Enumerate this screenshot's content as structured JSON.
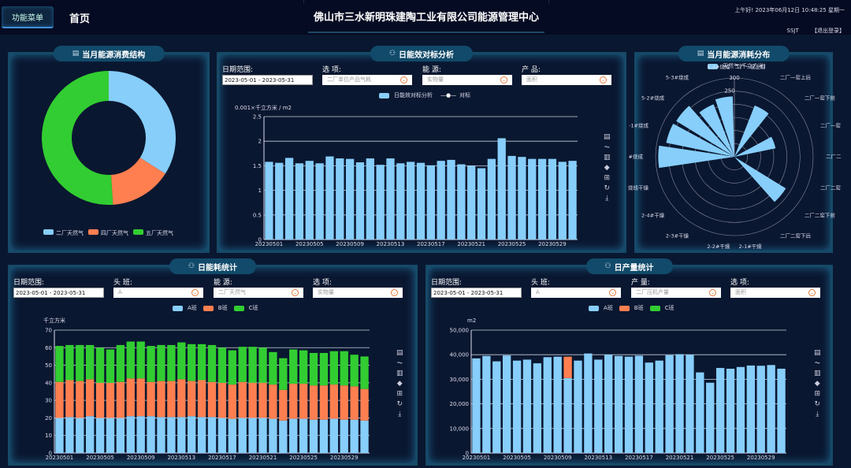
{
  "header": {
    "menu_button": "功能菜单",
    "home": "首页",
    "title": "佛山市三水新明珠建陶工业有限公司能源管理中心",
    "greeting": "上午好!   2023年06月12日 10:48:25 星期一",
    "username": "SSJT",
    "logout": "【退出登录】"
  },
  "panels": {
    "structure": {
      "title": "当月能源消费结构"
    },
    "efficiency": {
      "title": "日能效对标分析",
      "filters": [
        {
          "label": "日期范围:",
          "value": "2023-05-01 - 2023-05-31"
        },
        {
          "label": "选 项:",
          "value": "二厂单位产品气耗"
        },
        {
          "label": "能 源:",
          "value": "实物量"
        },
        {
          "label": "产 品:",
          "value": "面积"
        }
      ],
      "legend": [
        "日能效对标分析",
        "对标"
      ],
      "unit": "0.001×千立方米 / m2"
    },
    "distribution": {
      "title": "当月能源消耗分布",
      "legend": "天然气(千立方米)"
    },
    "consumption": {
      "title": "日能耗统计",
      "filters": [
        {
          "label": "日期范围:",
          "value": "2023-05-01 - 2023-05-31"
        },
        {
          "label": "头 班:",
          "value": "A"
        },
        {
          "label": "能 源:",
          "value": "二厂天然气"
        },
        {
          "label": "选 项:",
          "value": "实物量"
        }
      ],
      "legend": [
        "A班",
        "B班",
        "C班"
      ],
      "unit": "千立方米"
    },
    "production": {
      "title": "日产量统计",
      "filters": [
        {
          "label": "日期范围:",
          "value": "2023-05-01 - 2023-05-31"
        },
        {
          "label": "头 班:",
          "value": "A"
        },
        {
          "label": "产 量:",
          "value": "二厂压机产量"
        },
        {
          "label": "选 项:",
          "value": "面积"
        }
      ],
      "legend": [
        "A班",
        "B班",
        "C班"
      ],
      "unit": "m2"
    }
  },
  "colors": {
    "blue": "#87cefa",
    "orange": "#ff7f50",
    "green": "#32cd32",
    "bg": "#0a1730",
    "panel_border": "#164a68"
  },
  "toolbox": [
    "data-view-icon",
    "line-icon",
    "bar-icon",
    "stack-icon",
    "tiled-icon",
    "restore-icon",
    "save-icon"
  ],
  "chart_data": [
    {
      "type": "pie",
      "title": "当月能源消费结构",
      "categories": [
        "二厂天然气",
        "四厂天然气",
        "五厂天然气"
      ],
      "values": [
        34,
        15,
        51
      ],
      "legend_position": "bottom"
    },
    {
      "type": "bar",
      "title": "日能效对标分析",
      "ylabel": "0.001×千立方米 / m2",
      "ylim": [
        0,
        2.5
      ],
      "yticks": [
        0,
        0.5,
        1,
        1.5,
        2,
        2.5
      ],
      "categories": [
        "20230501",
        "20230502",
        "20230503",
        "20230504",
        "20230505",
        "20230506",
        "20230507",
        "20230508",
        "20230509",
        "20230510",
        "20230511",
        "20230512",
        "20230513",
        "20230514",
        "20230515",
        "20230516",
        "20230517",
        "20230518",
        "20230519",
        "20230520",
        "20230521",
        "20230522",
        "20230523",
        "20230524",
        "20230525",
        "20230526",
        "20230527",
        "20230528",
        "20230529",
        "20230530",
        "20230531"
      ],
      "series": [
        {
          "name": "日能效对标分析",
          "values": [
            1.58,
            1.56,
            1.66,
            1.55,
            1.6,
            1.55,
            1.69,
            1.65,
            1.64,
            1.57,
            1.65,
            1.52,
            1.65,
            1.55,
            1.58,
            1.56,
            1.51,
            1.6,
            1.62,
            1.53,
            1.5,
            1.45,
            1.64,
            2.06,
            1.7,
            1.68,
            1.64,
            1.64,
            1.64,
            1.58,
            1.6
          ]
        },
        {
          "name": "对标",
          "values": []
        }
      ]
    },
    {
      "type": "bar",
      "subtype": "polar",
      "title": "当月能源消耗分布",
      "series_name": "天然气(千立方米)",
      "rmax": 300,
      "categories": [
        "二厂一窑上前",
        "二厂一窑上后",
        "二厂一窑下前",
        "二厂一窑",
        "二厂二",
        "二厂二窑",
        "二厂二窑下前",
        "二厂二窑下后",
        "2-1#干燥",
        "2-2#干燥",
        "2-3#干燥",
        "2-4#干燥",
        "烧线干燥",
        "#烧成",
        "-1#烧成",
        "5-2#烧成",
        "5-3#烧成",
        "5-4#烧成"
      ],
      "values": [
        0,
        210,
        0,
        160,
        0,
        0,
        230,
        0,
        0,
        0,
        0,
        0,
        0,
        290,
        265,
        260,
        215,
        230
      ]
    },
    {
      "type": "bar",
      "subtype": "stacked",
      "title": "日能耗统计",
      "ylabel": "千立方米",
      "ylim": [
        0,
        70
      ],
      "yticks": [
        0,
        10,
        20,
        30,
        40,
        50,
        60,
        70
      ],
      "categories": [
        "20230501",
        "20230502",
        "20230503",
        "20230504",
        "20230505",
        "20230506",
        "20230507",
        "20230508",
        "20230509",
        "20230510",
        "20230511",
        "20230512",
        "20230513",
        "20230514",
        "20230515",
        "20230516",
        "20230517",
        "20230518",
        "20230519",
        "20230520",
        "20230521",
        "20230522",
        "20230523",
        "20230524",
        "20230525",
        "20230526",
        "20230527",
        "20230528",
        "20230529",
        "20230530",
        "20230531"
      ],
      "series": [
        {
          "name": "A班",
          "values": [
            20,
            20.5,
            20,
            21,
            20,
            20,
            20,
            21,
            21,
            21,
            20.5,
            20.5,
            20.5,
            21,
            20.5,
            20.5,
            20,
            19.5,
            20,
            20,
            20,
            19.5,
            18.5,
            19.5,
            19.5,
            19,
            19,
            19.5,
            19,
            19,
            18.5
          ]
        },
        {
          "name": "B班",
          "values": [
            20.5,
            21,
            21,
            21,
            20,
            20,
            20.5,
            21.5,
            21.5,
            19.5,
            20.5,
            20.5,
            21.5,
            20,
            21,
            20,
            20,
            19.5,
            20.5,
            20,
            20,
            19.5,
            17.5,
            20,
            20,
            19.5,
            19.5,
            19.5,
            19.5,
            19,
            18
          ]
        },
        {
          "name": "C班",
          "values": [
            20.5,
            20,
            20.5,
            19.5,
            20,
            19,
            21,
            21,
            21,
            20.5,
            20.5,
            20.5,
            21,
            21,
            20.5,
            21,
            20,
            19.5,
            20,
            20.5,
            20,
            18.5,
            18,
            19.5,
            19,
            18.5,
            18.5,
            19,
            19.5,
            18,
            18.5
          ]
        }
      ]
    },
    {
      "type": "bar",
      "subtype": "stacked",
      "title": "日产量统计",
      "ylabel": "m2",
      "ylim": [
        0,
        50000
      ],
      "yticks": [
        0,
        10000,
        20000,
        30000,
        40000,
        50000
      ],
      "categories": [
        "20230501",
        "20230502",
        "20230503",
        "20230504",
        "20230505",
        "20230506",
        "20230507",
        "20230508",
        "20230509",
        "20230510",
        "20230511",
        "20230512",
        "20230513",
        "20230514",
        "20230515",
        "20230516",
        "20230517",
        "20230518",
        "20230519",
        "20230520",
        "20230521",
        "20230522",
        "20230523",
        "20230524",
        "20230525",
        "20230526",
        "20230527",
        "20230528",
        "20230529",
        "20230530",
        "20230531"
      ],
      "series": [
        {
          "name": "A班",
          "values": [
            38500,
            39500,
            37300,
            39700,
            37600,
            38000,
            36500,
            39000,
            39200,
            30500,
            37600,
            40500,
            38000,
            40000,
            39500,
            39200,
            39600,
            36800,
            37600,
            39800,
            40200,
            40000,
            32800,
            28600,
            34600,
            34300,
            35000,
            35600,
            35500,
            35800,
            34300
          ]
        },
        {
          "name": "B班",
          "values": [
            0,
            0,
            0,
            0,
            0,
            0,
            0,
            0,
            0,
            8700,
            0,
            0,
            0,
            0,
            0,
            0,
            0,
            0,
            0,
            0,
            0,
            0,
            0,
            0,
            0,
            0,
            0,
            0,
            0,
            0,
            0
          ]
        },
        {
          "name": "C班",
          "values": [
            0,
            0,
            0,
            0,
            0,
            0,
            0,
            0,
            0,
            0,
            0,
            0,
            0,
            0,
            0,
            0,
            0,
            0,
            0,
            0,
            0,
            0,
            0,
            0,
            0,
            0,
            0,
            0,
            0,
            0,
            0
          ]
        }
      ]
    }
  ]
}
